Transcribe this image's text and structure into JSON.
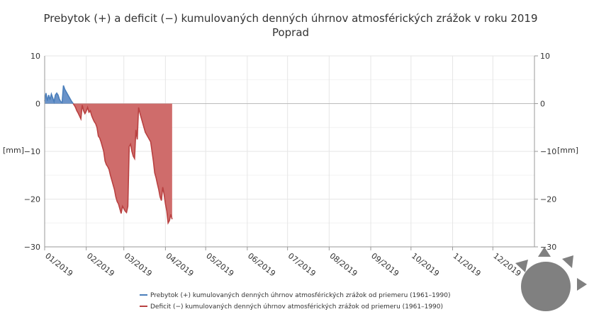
{
  "chart_data": {
    "type": "area",
    "title": "Prebytok (+) a deficit (−) kumulovaných denných úhrnov atmosférických zrážok v roku 2019",
    "subtitle": "Poprad",
    "ylabel_left": "[mm]",
    "ylabel_right": "[mm]",
    "ylim": [
      -30,
      10
    ],
    "yticks": [
      10,
      0,
      -10,
      -20,
      -30
    ],
    "ytick_labels": [
      "10",
      "0",
      "−10",
      "−20",
      "−30"
    ],
    "xlim": [
      "2019-01-01",
      "2020-01-01"
    ],
    "xtick_labels": [
      "01/2019",
      "02/2019",
      "03/2019",
      "04/2019",
      "05/2019",
      "06/2019",
      "07/2019",
      "08/2019",
      "09/2019",
      "10/2019",
      "11/2019",
      "12/2019"
    ],
    "grid": true,
    "legend_position": "bottom",
    "series": [
      {
        "name": "Prebytok (+) kumulovaných denných úhrnov atmosférických zrážok od priemeru (1961–1990)",
        "color": "#4a7ebb",
        "fill": "#6a93c9"
      },
      {
        "name": "Deficit (−) kumulovaných denných úhrnov atmosférických zrážok od priemeru (1961–1990)",
        "color": "#b94141",
        "fill": "#cf6c6b"
      }
    ],
    "points": [
      [
        "2019-01-01",
        0.5
      ],
      [
        "2019-01-02",
        2.2
      ],
      [
        "2019-01-03",
        0.6
      ],
      [
        "2019-01-04",
        1.8
      ],
      [
        "2019-01-05",
        0.8
      ],
      [
        "2019-01-06",
        2.0
      ],
      [
        "2019-01-07",
        1.2
      ],
      [
        "2019-01-08",
        0.4
      ],
      [
        "2019-01-09",
        1.8
      ],
      [
        "2019-01-10",
        2.2
      ],
      [
        "2019-01-11",
        1.8
      ],
      [
        "2019-01-12",
        0.9
      ],
      [
        "2019-01-13",
        0.4
      ],
      [
        "2019-01-14",
        0.2
      ],
      [
        "2019-01-15",
        3.8
      ],
      [
        "2019-01-16",
        3.0
      ],
      [
        "2019-01-17",
        2.5
      ],
      [
        "2019-01-18",
        2.0
      ],
      [
        "2019-01-19",
        1.5
      ],
      [
        "2019-01-20",
        1.0
      ],
      [
        "2019-01-21",
        0.5
      ],
      [
        "2019-01-22",
        0.1
      ],
      [
        "2019-01-23",
        -0.3
      ],
      [
        "2019-01-24",
        -0.8
      ],
      [
        "2019-01-25",
        -1.5
      ],
      [
        "2019-01-26",
        -2.0
      ],
      [
        "2019-01-27",
        -2.6
      ],
      [
        "2019-01-28",
        -3.2
      ],
      [
        "2019-01-29",
        -0.3
      ],
      [
        "2019-01-30",
        -1.5
      ],
      [
        "2019-01-31",
        -2.1
      ],
      [
        "2019-02-01",
        -1.6
      ],
      [
        "2019-02-02",
        -0.8
      ],
      [
        "2019-02-03",
        -1.8
      ],
      [
        "2019-02-04",
        -1.5
      ],
      [
        "2019-02-05",
        -2.5
      ],
      [
        "2019-02-06",
        -3.2
      ],
      [
        "2019-02-07",
        -3.8
      ],
      [
        "2019-02-08",
        -4.2
      ],
      [
        "2019-02-09",
        -5.0
      ],
      [
        "2019-02-10",
        -6.8
      ],
      [
        "2019-02-11",
        -7.2
      ],
      [
        "2019-02-12",
        -8.0
      ],
      [
        "2019-02-13",
        -9.0
      ],
      [
        "2019-02-14",
        -10.0
      ],
      [
        "2019-02-15",
        -12.0
      ],
      [
        "2019-02-16",
        -12.8
      ],
      [
        "2019-02-17",
        -13.2
      ],
      [
        "2019-02-18",
        -13.8
      ],
      [
        "2019-02-19",
        -15.0
      ],
      [
        "2019-02-20",
        -16.0
      ],
      [
        "2019-02-21",
        -17.0
      ],
      [
        "2019-02-22",
        -18.0
      ],
      [
        "2019-02-23",
        -19.5
      ],
      [
        "2019-02-24",
        -20.5
      ],
      [
        "2019-02-25",
        -21.0
      ],
      [
        "2019-02-26",
        -22.0
      ],
      [
        "2019-02-27",
        -23.0
      ],
      [
        "2019-02-28",
        -21.5
      ],
      [
        "2019-03-01",
        -22.0
      ],
      [
        "2019-03-02",
        -22.5
      ],
      [
        "2019-03-03",
        -22.8
      ],
      [
        "2019-03-04",
        -21.5
      ],
      [
        "2019-03-05",
        -9.0
      ],
      [
        "2019-03-06",
        -8.5
      ],
      [
        "2019-03-07",
        -10.0
      ],
      [
        "2019-03-08",
        -11.0
      ],
      [
        "2019-03-09",
        -11.5
      ],
      [
        "2019-03-10",
        -5.5
      ],
      [
        "2019-03-11",
        -7.5
      ],
      [
        "2019-03-12",
        -0.8
      ],
      [
        "2019-03-13",
        -2.0
      ],
      [
        "2019-03-14",
        -3.0
      ],
      [
        "2019-03-15",
        -4.0
      ],
      [
        "2019-03-16",
        -5.0
      ],
      [
        "2019-03-17",
        -6.0
      ],
      [
        "2019-03-18",
        -6.5
      ],
      [
        "2019-03-19",
        -7.0
      ],
      [
        "2019-03-20",
        -7.5
      ],
      [
        "2019-03-21",
        -8.0
      ],
      [
        "2019-03-22",
        -10.0
      ],
      [
        "2019-03-23",
        -12.0
      ],
      [
        "2019-03-24",
        -14.5
      ],
      [
        "2019-03-25",
        -15.5
      ],
      [
        "2019-03-26",
        -16.8
      ],
      [
        "2019-03-27",
        -18.0
      ],
      [
        "2019-03-28",
        -19.5
      ],
      [
        "2019-03-29",
        -20.3
      ],
      [
        "2019-03-30",
        -17.5
      ],
      [
        "2019-03-31",
        -19.0
      ],
      [
        "2019-04-01",
        -21.0
      ],
      [
        "2019-04-02",
        -22.5
      ],
      [
        "2019-04-03",
        -25.0
      ],
      [
        "2019-04-04",
        -24.5
      ],
      [
        "2019-04-05",
        -23.2
      ],
      [
        "2019-04-06",
        -24.2
      ]
    ]
  }
}
